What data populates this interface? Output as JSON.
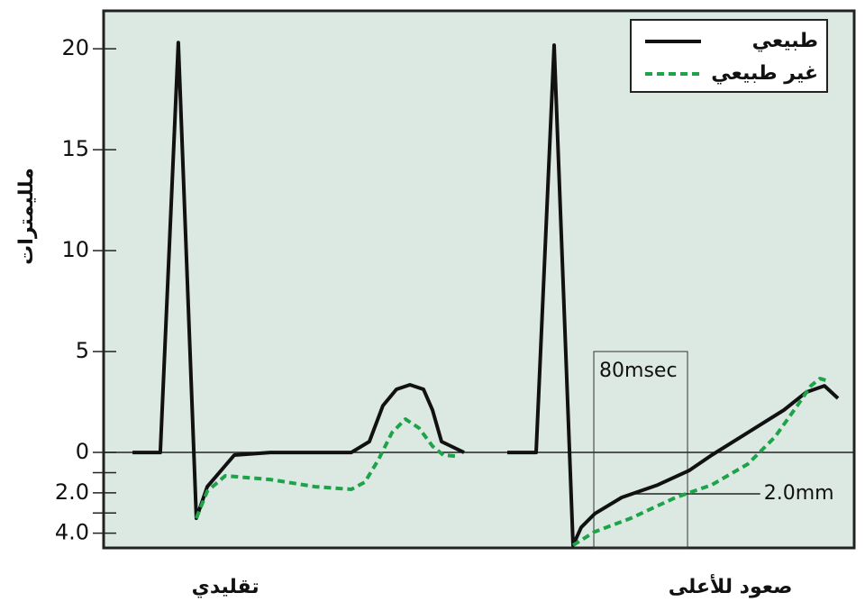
{
  "chart_data": {
    "type": "line",
    "y_label": "ملليمترات",
    "ylim": [
      -4.73,
      21.88
    ],
    "xlim": [
      0,
      628.7
    ],
    "yticks": [
      {
        "value": -4,
        "label": "4.0"
      },
      {
        "value": -2,
        "label": "2.0"
      },
      0,
      5,
      10,
      15,
      20
    ],
    "yminor_ticks": [
      -3,
      -1
    ],
    "background": "#dce9e3",
    "legend": "top-right",
    "panels": [
      "تقليدي",
      "صعود للأعلى"
    ],
    "panel_x": [
      102,
      525
    ],
    "window": {
      "label": "80msec",
      "x": [
        410.6,
        489.1
      ],
      "top": 5.0
    },
    "depression": {
      "label": "2.0mm",
      "y": -2.05,
      "x": [
        441.5,
        550
      ]
    },
    "series": [
      {
        "name": "طبيعي",
        "color": "#111111",
        "dash": false,
        "x": [
          24.2,
          47.5,
          62.6,
          77.7,
          86.8,
          109.4,
          139.6,
          207.5,
          222.6,
          234.0,
          245.3,
          256.6,
          267.9,
          275.5,
          283.0,
          301.9,
          null,
          338.1,
          362.3,
          377.4,
          393.2,
          400.0,
          411.3,
          434.0,
          464.2,
          490.6,
          509.4,
          539.6,
          569.8,
          588.7,
          603.8,
          615.1
        ],
        "values": [
          0,
          0,
          20.31,
          -3.26,
          -1.7,
          -0.13,
          0,
          0,
          0.54,
          2.32,
          3.13,
          3.35,
          3.13,
          2.1,
          0.54,
          0,
          null,
          0,
          0,
          20.18,
          -4.6,
          -3.71,
          -3.04,
          -2.23,
          -1.61,
          -0.89,
          -0.13,
          0.98,
          2.1,
          2.99,
          3.3,
          2.68
        ]
      },
      {
        "name": "غير طبيعي",
        "color": "#1fa34a",
        "dash": true,
        "x": [
          77.7,
          86.8,
          101.9,
          139.6,
          177.4,
          207.5,
          218.9,
          230.2,
          241.5,
          252.8,
          264.2,
          275.5,
          284.5,
          294.3,
          null,
          393.2,
          411.3,
          441.5,
          479.2,
          509.4,
          539.6,
          562.3,
          581.1,
          592.5,
          600.0,
          607.5
        ],
        "values": [
          -3.26,
          -1.92,
          -1.16,
          -1.34,
          -1.7,
          -1.83,
          -1.47,
          -0.36,
          0.98,
          1.65,
          1.21,
          0.31,
          -0.13,
          -0.18,
          null,
          -4.6,
          -3.93,
          -3.26,
          -2.23,
          -1.61,
          -0.58,
          0.76,
          2.32,
          3.3,
          3.66,
          3.53
        ]
      }
    ]
  }
}
